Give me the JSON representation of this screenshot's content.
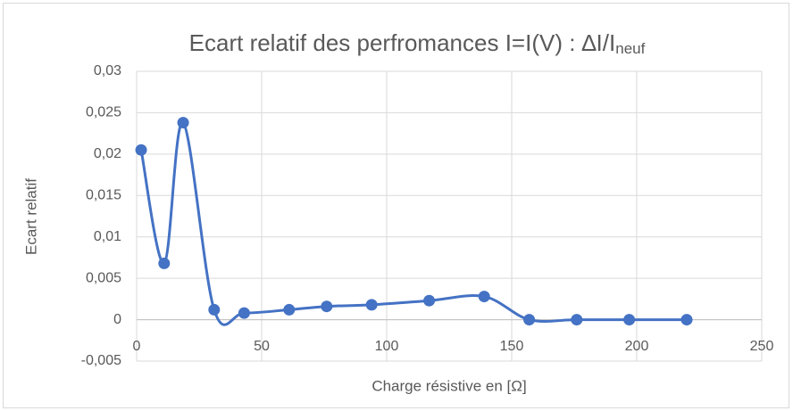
{
  "chart_data": {
    "type": "scatter_smooth",
    "title": "Ecart relatif des perfromances I=I(V) : ∆I/I",
    "title_subscript": "neuf",
    "x_label": "Charge résistive en [Ω]",
    "y_label": "Ecart relatif",
    "series": [
      {
        "name": "Ecart relatif",
        "color": "#4472c4",
        "x": [
          1.8,
          11,
          18.6,
          31,
          43,
          61,
          76,
          94,
          117,
          139,
          157,
          176,
          197,
          220
        ],
        "values": [
          0.0205,
          0.0068,
          0.0238,
          0.0012,
          0.0008,
          0.0012,
          0.0016,
          0.0018,
          0.0023,
          0.0028,
          0,
          0,
          0,
          0
        ]
      }
    ],
    "xlim": [
      0,
      250
    ],
    "xticks": [
      0,
      50,
      100,
      150,
      200,
      250
    ],
    "ylim": [
      -0.005,
      0.03
    ],
    "yticks": [
      {
        "value": -0.005,
        "label": "-0,005"
      },
      0,
      {
        "value": 0.005,
        "label": "0,005"
      },
      {
        "value": 0.01,
        "label": "0,01"
      },
      {
        "value": 0.015,
        "label": "0,015"
      },
      {
        "value": 0.02,
        "label": "0,02"
      },
      {
        "value": 0.025,
        "label": "0,025"
      },
      {
        "value": 0.03,
        "label": "0,03"
      }
    ],
    "grid": true
  }
}
